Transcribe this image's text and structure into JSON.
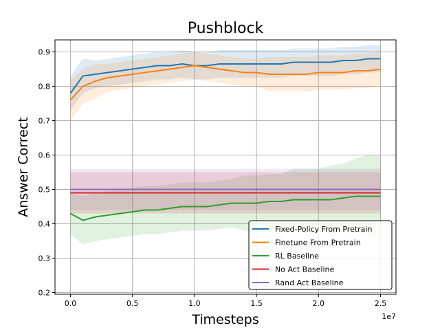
{
  "chart_data": {
    "type": "line",
    "title": "Pushblock",
    "xlabel": "Timesteps",
    "ylabel": "Answer Correct",
    "x_offset_label": "1e7",
    "xlim": [
      -1250000,
      26250000
    ],
    "ylim": [
      0.195,
      0.935
    ],
    "xticks": [
      0,
      5000000,
      10000000,
      15000000,
      20000000,
      25000000
    ],
    "xtick_labels": [
      "0.0",
      "0.5",
      "1.0",
      "1.5",
      "2.0",
      "2.5"
    ],
    "yticks": [
      0.2,
      0.3,
      0.4,
      0.5,
      0.6,
      0.7,
      0.8,
      0.9
    ],
    "ytick_labels": [
      "0.2",
      "0.3",
      "0.4",
      "0.5",
      "0.6",
      "0.7",
      "0.8",
      "0.9"
    ],
    "grid": true,
    "legend_position": "lower-right",
    "x": [
      0,
      1000000,
      2000000,
      3000000,
      4000000,
      5000000,
      6000000,
      7000000,
      8000000,
      9000000,
      10000000,
      11000000,
      12000000,
      13000000,
      14000000,
      15000000,
      16000000,
      17000000,
      18000000,
      19000000,
      20000000,
      21000000,
      22000000,
      23000000,
      24000000,
      25000000
    ],
    "series": [
      {
        "name": "Fixed-Policy From Pretrain",
        "color": "#1f77b4",
        "values": [
          0.78,
          0.83,
          0.835,
          0.84,
          0.845,
          0.85,
          0.855,
          0.86,
          0.86,
          0.865,
          0.86,
          0.86,
          0.865,
          0.865,
          0.865,
          0.865,
          0.865,
          0.865,
          0.87,
          0.87,
          0.87,
          0.87,
          0.875,
          0.875,
          0.88,
          0.88
        ],
        "band": [
          0.05,
          0.05,
          0.04,
          0.04,
          0.04,
          0.04,
          0.04,
          0.04,
          0.04,
          0.04,
          0.04,
          0.04,
          0.04,
          0.04,
          0.04,
          0.04,
          0.04,
          0.04,
          0.04,
          0.04,
          0.04,
          0.04,
          0.04,
          0.04,
          0.04,
          0.04
        ]
      },
      {
        "name": "Finetune From Pretrain",
        "color": "#ff7f0e",
        "values": [
          0.76,
          0.8,
          0.815,
          0.825,
          0.83,
          0.835,
          0.84,
          0.845,
          0.85,
          0.855,
          0.86,
          0.855,
          0.85,
          0.845,
          0.84,
          0.84,
          0.835,
          0.835,
          0.835,
          0.835,
          0.84,
          0.84,
          0.84,
          0.845,
          0.845,
          0.85
        ],
        "band": [
          0.06,
          0.05,
          0.05,
          0.04,
          0.04,
          0.04,
          0.04,
          0.04,
          0.04,
          0.04,
          0.04,
          0.04,
          0.04,
          0.04,
          0.04,
          0.04,
          0.05,
          0.05,
          0.05,
          0.05,
          0.05,
          0.05,
          0.05,
          0.05,
          0.05,
          0.05
        ]
      },
      {
        "name": "RL Baseline",
        "color": "#2ca02c",
        "values": [
          0.43,
          0.41,
          0.42,
          0.425,
          0.43,
          0.435,
          0.44,
          0.44,
          0.445,
          0.45,
          0.45,
          0.45,
          0.455,
          0.46,
          0.46,
          0.46,
          0.465,
          0.465,
          0.47,
          0.47,
          0.47,
          0.47,
          0.475,
          0.48,
          0.48,
          0.48
        ],
        "band": [
          0.06,
          0.07,
          0.07,
          0.07,
          0.07,
          0.07,
          0.07,
          0.07,
          0.07,
          0.07,
          0.07,
          0.07,
          0.07,
          0.07,
          0.08,
          0.08,
          0.08,
          0.08,
          0.09,
          0.09,
          0.09,
          0.1,
          0.1,
          0.11,
          0.12,
          0.12
        ]
      },
      {
        "name": "No Act Baseline",
        "color": "#d62728",
        "values": [
          0.49,
          0.49,
          0.49,
          0.49,
          0.49,
          0.49,
          0.49,
          0.49,
          0.49,
          0.49,
          0.49,
          0.49,
          0.49,
          0.49,
          0.49,
          0.49,
          0.49,
          0.49,
          0.49,
          0.49,
          0.49,
          0.49,
          0.49,
          0.49,
          0.49,
          0.49
        ],
        "band": [
          0.06,
          0.06,
          0.06,
          0.06,
          0.06,
          0.06,
          0.06,
          0.06,
          0.06,
          0.06,
          0.06,
          0.06,
          0.06,
          0.06,
          0.06,
          0.06,
          0.06,
          0.06,
          0.06,
          0.06,
          0.06,
          0.06,
          0.06,
          0.06,
          0.06,
          0.06
        ]
      },
      {
        "name": "Rand Act Baseline",
        "color": "#9467bd",
        "values": [
          0.5,
          0.5,
          0.5,
          0.5,
          0.5,
          0.5,
          0.5,
          0.5,
          0.5,
          0.5,
          0.5,
          0.5,
          0.5,
          0.5,
          0.5,
          0.5,
          0.5,
          0.5,
          0.5,
          0.5,
          0.5,
          0.5,
          0.5,
          0.5,
          0.5,
          0.5
        ],
        "band": [
          0.06,
          0.06,
          0.06,
          0.06,
          0.06,
          0.06,
          0.06,
          0.06,
          0.06,
          0.06,
          0.06,
          0.06,
          0.06,
          0.06,
          0.06,
          0.06,
          0.06,
          0.06,
          0.06,
          0.06,
          0.06,
          0.06,
          0.06,
          0.06,
          0.06,
          0.06
        ]
      }
    ]
  }
}
